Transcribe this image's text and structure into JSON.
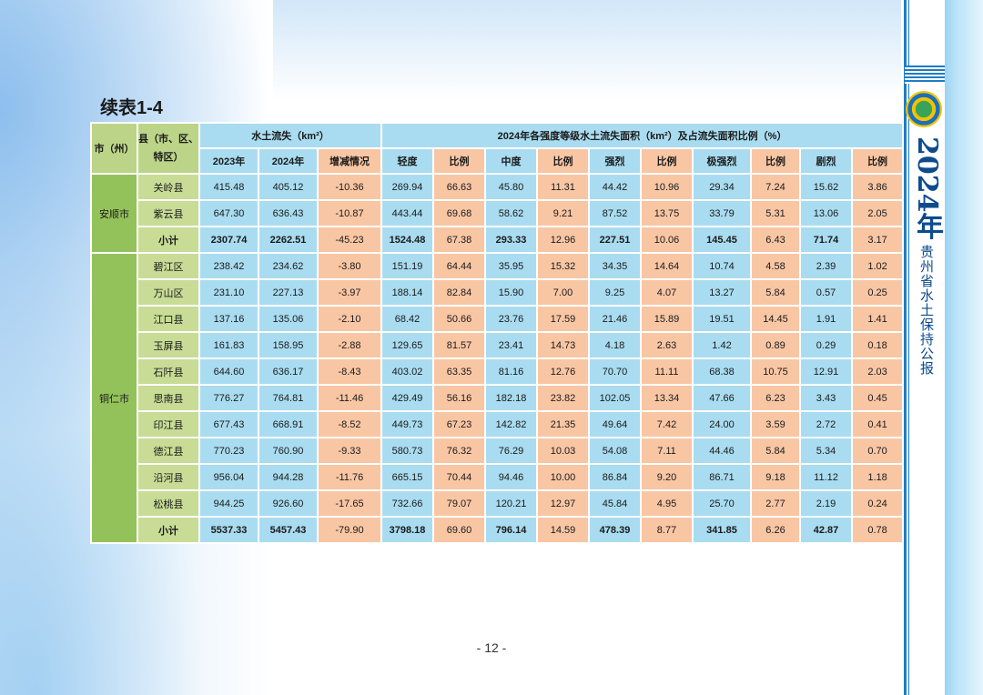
{
  "report": {
    "side_year": "2024年",
    "side_name": "贵州省水土保持公报"
  },
  "title": "续表1-4",
  "page_number": "- 12 -",
  "table": {
    "headers": {
      "city": "市（州）",
      "county": "县（市、区、特区）",
      "soil_loss": "水土流失（km²）",
      "intensity": "2024年各强度等级水土流失面积（km²）及占流失面积比例（%）",
      "sub": [
        "2023年",
        "2024年",
        "增减情况",
        "轻度",
        "比例",
        "中度",
        "比例",
        "强烈",
        "比例",
        "极强烈",
        "比例",
        "剧烈",
        "比例"
      ]
    },
    "groups": [
      {
        "city": "安顺市",
        "rows": [
          {
            "county": "关岭县",
            "values": [
              "415.48",
              "405.12",
              "-10.36",
              "269.94",
              "66.63",
              "45.80",
              "11.31",
              "44.42",
              "10.96",
              "29.34",
              "7.24",
              "15.62",
              "3.86"
            ]
          },
          {
            "county": "紫云县",
            "values": [
              "647.30",
              "636.43",
              "-10.87",
              "443.44",
              "69.68",
              "58.62",
              "9.21",
              "87.52",
              "13.75",
              "33.79",
              "5.31",
              "13.06",
              "2.05"
            ]
          },
          {
            "county": "小计",
            "subtotal": true,
            "values": [
              "2307.74",
              "2262.51",
              "-45.23",
              "1524.48",
              "67.38",
              "293.33",
              "12.96",
              "227.51",
              "10.06",
              "145.45",
              "6.43",
              "71.74",
              "3.17"
            ]
          }
        ]
      },
      {
        "city": "铜仁市",
        "rows": [
          {
            "county": "碧江区",
            "values": [
              "238.42",
              "234.62",
              "-3.80",
              "151.19",
              "64.44",
              "35.95",
              "15.32",
              "34.35",
              "14.64",
              "10.74",
              "4.58",
              "2.39",
              "1.02"
            ]
          },
          {
            "county": "万山区",
            "values": [
              "231.10",
              "227.13",
              "-3.97",
              "188.14",
              "82.84",
              "15.90",
              "7.00",
              "9.25",
              "4.07",
              "13.27",
              "5.84",
              "0.57",
              "0.25"
            ]
          },
          {
            "county": "江口县",
            "values": [
              "137.16",
              "135.06",
              "-2.10",
              "68.42",
              "50.66",
              "23.76",
              "17.59",
              "21.46",
              "15.89",
              "19.51",
              "14.45",
              "1.91",
              "1.41"
            ]
          },
          {
            "county": "玉屏县",
            "values": [
              "161.83",
              "158.95",
              "-2.88",
              "129.65",
              "81.57",
              "23.41",
              "14.73",
              "4.18",
              "2.63",
              "1.42",
              "0.89",
              "0.29",
              "0.18"
            ]
          },
          {
            "county": "石阡县",
            "values": [
              "644.60",
              "636.17",
              "-8.43",
              "403.02",
              "63.35",
              "81.16",
              "12.76",
              "70.70",
              "11.11",
              "68.38",
              "10.75",
              "12.91",
              "2.03"
            ]
          },
          {
            "county": "思南县",
            "values": [
              "776.27",
              "764.81",
              "-11.46",
              "429.49",
              "56.16",
              "182.18",
              "23.82",
              "102.05",
              "13.34",
              "47.66",
              "6.23",
              "3.43",
              "0.45"
            ]
          },
          {
            "county": "印江县",
            "values": [
              "677.43",
              "668.91",
              "-8.52",
              "449.73",
              "67.23",
              "142.82",
              "21.35",
              "49.64",
              "7.42",
              "24.00",
              "3.59",
              "2.72",
              "0.41"
            ]
          },
          {
            "county": "德江县",
            "values": [
              "770.23",
              "760.90",
              "-9.33",
              "580.73",
              "76.32",
              "76.29",
              "10.03",
              "54.08",
              "7.11",
              "44.46",
              "5.84",
              "5.34",
              "0.70"
            ]
          },
          {
            "county": "沿河县",
            "values": [
              "956.04",
              "944.28",
              "-11.76",
              "665.15",
              "70.44",
              "94.46",
              "10.00",
              "86.84",
              "9.20",
              "86.71",
              "9.18",
              "11.12",
              "1.18"
            ]
          },
          {
            "county": "松桃县",
            "values": [
              "944.25",
              "926.60",
              "-17.65",
              "732.66",
              "79.07",
              "120.21",
              "12.97",
              "45.84",
              "4.95",
              "25.70",
              "2.77",
              "2.19",
              "0.24"
            ]
          },
          {
            "county": "小计",
            "subtotal": true,
            "values": [
              "5537.33",
              "5457.43",
              "-79.90",
              "3798.18",
              "69.60",
              "796.14",
              "14.59",
              "478.39",
              "8.77",
              "341.85",
              "6.26",
              "42.87",
              "0.78"
            ]
          }
        ]
      }
    ]
  }
}
